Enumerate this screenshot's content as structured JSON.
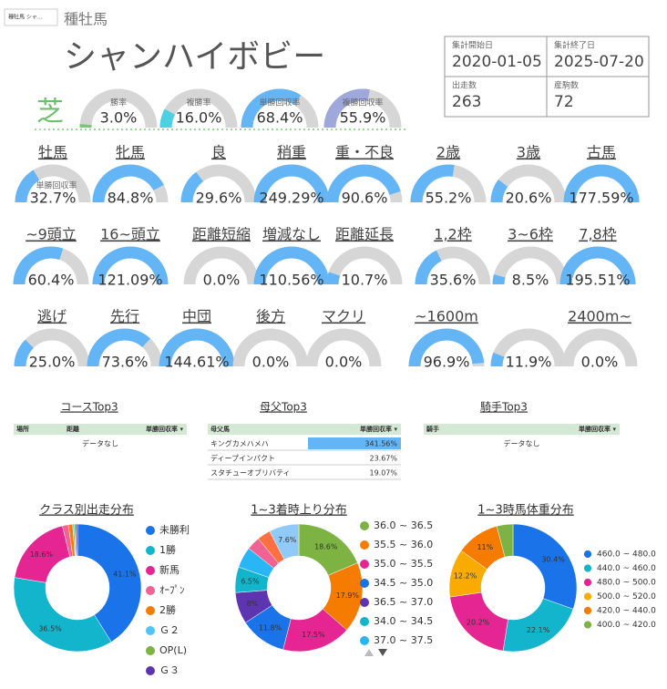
{
  "header": {
    "selector": "種牡馬 シャ…",
    "section": "種牡馬",
    "name": "シャンハイボビー"
  },
  "stats": [
    {
      "label": "集計開始日",
      "value": "2020-01-05"
    },
    {
      "label": "集計終了日",
      "value": "2025-07-20"
    },
    {
      "label": "出走数",
      "value": 263
    },
    {
      "label": "産駒数",
      "value": 72
    }
  ],
  "surface": "芝",
  "summary_gauges": [
    {
      "label": "勝率",
      "value": 3.0,
      "value_label": "3.0%",
      "color": "#7cc47c"
    },
    {
      "label": "複勝率",
      "value": 16.0,
      "value_label": "16.0%",
      "color": "#4dd0e1"
    },
    {
      "label": "単勝回収率",
      "value": 68.4,
      "value_label": "68.4%",
      "color": "#64b5f6"
    },
    {
      "label": "複勝回収率",
      "value": 55.9,
      "value_label": "55.9%",
      "color": "#9fa8da"
    }
  ],
  "gauge_caption": "単勝回収率",
  "gauge_max": 100,
  "gauge_color": "#64b5f6",
  "gauges": [
    {
      "label": "牡馬",
      "value": 32.7,
      "value_label": "32.7%"
    },
    {
      "label": "牝馬",
      "value": 84.8,
      "value_label": "84.8%"
    },
    {
      "label": "良",
      "value": 29.6,
      "value_label": "29.6%"
    },
    {
      "label": "稍重",
      "value": 249.29,
      "value_label": "249.29%"
    },
    {
      "label": "重・不良",
      "value": 90.6,
      "value_label": "90.6%"
    },
    {
      "label": "2歳",
      "value": 55.2,
      "value_label": "55.2%"
    },
    {
      "label": "3歳",
      "value": 20.6,
      "value_label": "20.6%"
    },
    {
      "label": "古馬",
      "value": 177.59,
      "value_label": "177.59%"
    },
    {
      "label": "~9頭立",
      "value": 60.4,
      "value_label": "60.4%"
    },
    {
      "label": "16~頭立",
      "value": 121.09,
      "value_label": "121.09%"
    },
    {
      "label": "距離短縮",
      "value": 0.0,
      "value_label": "0.0%"
    },
    {
      "label": "増減なし",
      "value": 110.56,
      "value_label": "110.56%"
    },
    {
      "label": "距離延長",
      "value": 10.7,
      "value_label": "10.7%"
    },
    {
      "label": "1,2枠",
      "value": 35.6,
      "value_label": "35.6%"
    },
    {
      "label": "3~6枠",
      "value": 8.5,
      "value_label": "8.5%"
    },
    {
      "label": "7,8枠",
      "value": 195.51,
      "value_label": "195.51%"
    },
    {
      "label": "逃げ",
      "value": 25.0,
      "value_label": "25.0%"
    },
    {
      "label": "先行",
      "value": 73.6,
      "value_label": "73.6%"
    },
    {
      "label": "中団",
      "value": 144.61,
      "value_label": "144.61%"
    },
    {
      "label": "後方",
      "value": 0.0,
      "value_label": "0.0%"
    },
    {
      "label": "マクリ",
      "value": 0.0,
      "value_label": "0.0%"
    },
    {
      "label": "~1600m",
      "value": 96.9,
      "value_label": "96.9%"
    },
    {
      "label": null,
      "value": 11.9,
      "value_label": "11.9%"
    },
    {
      "label": "2400m~",
      "value": 0.0,
      "value_label": "0.0%"
    }
  ],
  "tables": [
    {
      "title": "コースTop3",
      "columns": [
        "場所",
        "距離",
        "単勝回収率 ▾"
      ],
      "empty": "データなし"
    },
    {
      "title": "母父Top3",
      "columns": [
        "母父馬",
        "単勝回収率 ▾"
      ],
      "bar_color": "#64b5f6",
      "rows": [
        {
          "name": "キングカメハメハ",
          "value": 341.56,
          "value_label": "341.56%"
        },
        {
          "name": "ディープインパクト",
          "value": 23.67,
          "value_label": "23.67%"
        },
        {
          "name": "スタチューオブリバティ",
          "value": 19.07,
          "value_label": "19.07%"
        }
      ]
    },
    {
      "title": "騎手Top3",
      "columns": [
        "騎手",
        "単勝回収率 ▾"
      ],
      "empty": "データなし"
    }
  ],
  "donuts": [
    {
      "title": "クラス別出走分布",
      "categories": [
        "未勝利",
        "1勝",
        "新馬",
        "ｵｰﾌﾟﾝ",
        "2勝",
        "Ｇ２",
        "OP(L)",
        "Ｇ３"
      ],
      "values": [
        41.1,
        36.5,
        18.6,
        1.5,
        1.1,
        0.4,
        0.4,
        0.4
      ],
      "value_labels": [
        "41.1%",
        "36.5%",
        "18.6%",
        null,
        null,
        null,
        null,
        null
      ],
      "colors": [
        "#1a73e8",
        "#12b5cb",
        "#e52592",
        "#f06292",
        "#f57c00",
        "#4fc3f7",
        "#7cb342",
        "#5e35b1"
      ]
    },
    {
      "title": "1~3着時上り分布",
      "categories": [
        "36.0 ~ 36.5",
        "35.5 ~ 36.0",
        "35.0 ~ 35.5",
        "34.5 ~ 35.0",
        "36.5 ~ 37.0",
        "34.0 ~ 34.5",
        "37.0 ~ 37.5",
        null,
        null,
        null
      ],
      "values": [
        18.6,
        17.9,
        17.5,
        11.8,
        8,
        6.5,
        5.3,
        3.4,
        3.4,
        7.6
      ],
      "value_labels": [
        "18.6%",
        "17.9%",
        "17.5%",
        "11.8%",
        "8%",
        "6.5%",
        null,
        null,
        null,
        "7.6%"
      ],
      "colors": [
        "#7cb342",
        "#f57c00",
        "#e52592",
        "#1a73e8",
        "#5e35b1",
        "#12b5cb",
        "#29b6f6",
        "#f06292",
        "#ff7043",
        "#90caf9"
      ]
    },
    {
      "title": "1~3時馬体重分布",
      "categories": [
        "460.0 ~ 480.0",
        "440.0 ~ 460.0",
        "480.0 ~ 500.0",
        "500.0 ~ 520.0",
        "420.0 ~ 440.0",
        "400.0 ~ 420.0"
      ],
      "values": [
        30.4,
        22.1,
        20.2,
        12.2,
        11,
        4.1
      ],
      "value_labels": [
        "30.4%",
        "22.1%",
        "20.2%",
        "12.2%",
        "11%",
        null
      ],
      "colors": [
        "#1a73e8",
        "#12b5cb",
        "#e52592",
        "#f9ab00",
        "#f57c00",
        "#7cb342"
      ]
    }
  ]
}
